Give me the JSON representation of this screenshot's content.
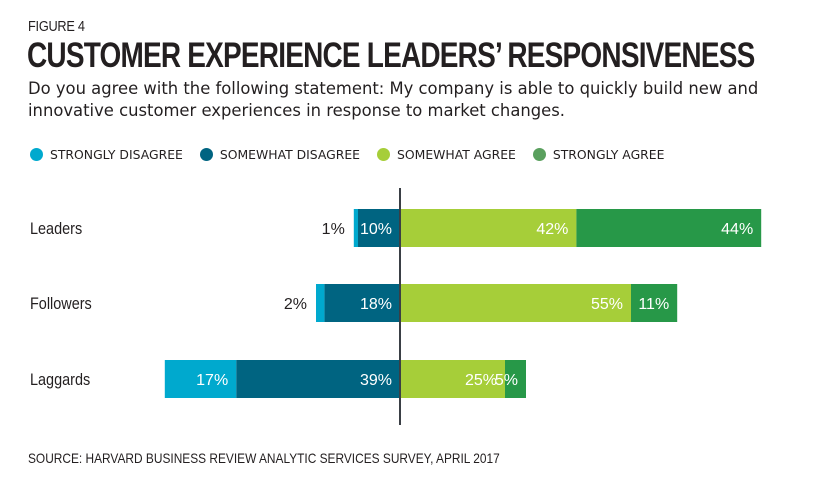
{
  "figure_label": "FIGURE 4",
  "chart_data": {
    "type": "bar",
    "orientation": "horizontal",
    "stacked": "diverging",
    "title": "CUSTOMER EXPERIENCE LEADERS’ RESPONSIVENESS",
    "subtitle": "Do you agree with the following statement: My company is able to quickly build new and innovative customer experiences in response to market changes.",
    "categories": [
      "Leaders",
      "Followers",
      "Laggards"
    ],
    "series": [
      {
        "name": "STRONGLY DISAGREE",
        "side": "negative",
        "color": "#00a9ce",
        "values": [
          1,
          2,
          17
        ],
        "labels": [
          "1%",
          "2%",
          "17%"
        ]
      },
      {
        "name": "SOMEWHAT DISAGREE",
        "side": "negative",
        "color": "#006481",
        "values": [
          10,
          18,
          39
        ],
        "labels": [
          "10%",
          "18%",
          "39%"
        ]
      },
      {
        "name": "SOMEWHAT AGREE",
        "side": "positive",
        "color": "#a6ce39",
        "values": [
          42,
          55,
          25
        ],
        "labels": [
          "42%",
          "55%",
          "25%"
        ]
      },
      {
        "name": "STRONGLY AGREE",
        "side": "positive",
        "color": "#279848",
        "values": [
          44,
          11,
          5
        ],
        "labels": [
          "44%",
          "11%",
          "5%"
        ]
      }
    ],
    "legend_colors": [
      "#00a9ce",
      "#006481",
      "#a6ce39",
      "#5aa05e"
    ],
    "legend_position": "top-left",
    "xlabel": "",
    "ylabel": "",
    "grid": false,
    "center_line": true,
    "unit": "%"
  },
  "source": "SOURCE: HARVARD BUSINESS REVIEW ANALYTIC SERVICES SURVEY, APRIL 2017"
}
